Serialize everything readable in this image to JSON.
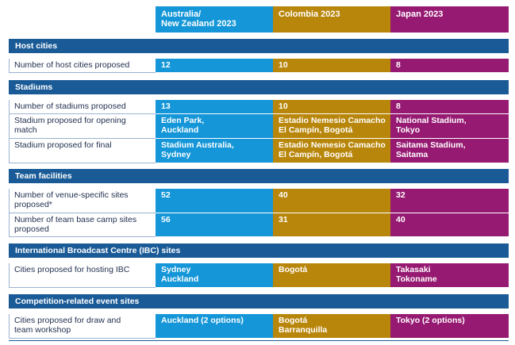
{
  "columns": [
    {
      "lines": [
        "Australia/",
        "New Zealand 2023"
      ],
      "color": "#1496d8"
    },
    {
      "lines": [
        "Colombia 2023"
      ],
      "color": "#b8860b"
    },
    {
      "lines": [
        "Japan 2023"
      ],
      "color": "#961a72"
    }
  ],
  "sections": {
    "host_cities": "Host cities",
    "stadiums": "Stadiums",
    "team_facilities": "Team facilities",
    "ibc": "International Broadcast Centre (IBC) sites",
    "competition": "Competition-related event sites"
  },
  "rows": {
    "host_cities_proposed": {
      "label": [
        "Number of host cities proposed"
      ],
      "values": [
        [
          "12"
        ],
        [
          "10"
        ],
        [
          "8"
        ]
      ]
    },
    "stadiums_proposed": {
      "label": [
        "Number of stadiums proposed"
      ],
      "values": [
        [
          "13"
        ],
        [
          "10"
        ],
        [
          "8"
        ]
      ]
    },
    "opening_match": {
      "label": [
        "Stadium proposed for opening",
        "match"
      ],
      "values": [
        [
          "Eden Park,",
          "Auckland"
        ],
        [
          "Estadio Nemesio Camacho",
          "El Campín, Bogotá"
        ],
        [
          "National Stadium,",
          "Tokyo"
        ]
      ]
    },
    "final": {
      "label": [
        "Stadium proposed for final"
      ],
      "values": [
        [
          "Stadium Australia,",
          "Sydney"
        ],
        [
          "Estadio Nemesio Camacho",
          "El Campín, Bogotá"
        ],
        [
          "Saitama Stadium,",
          "Saitama"
        ]
      ]
    },
    "venue_sites": {
      "label": [
        "Number of venue-specific sites",
        "proposed*"
      ],
      "values": [
        [
          "52"
        ],
        [
          "40"
        ],
        [
          "32"
        ]
      ]
    },
    "base_camps": {
      "label": [
        "Number of team base camp sites",
        "proposed"
      ],
      "values": [
        [
          "56"
        ],
        [
          "31"
        ],
        [
          "40"
        ]
      ]
    },
    "ibc_cities": {
      "label": [
        "Cities proposed for hosting IBC"
      ],
      "values": [
        [
          "Sydney",
          "Auckland"
        ],
        [
          "Bogotá"
        ],
        [
          "Takasaki",
          "Tokoname"
        ]
      ]
    },
    "draw_cities": {
      "label": [
        "Cities proposed for draw and",
        "team workshop"
      ],
      "values": [
        [
          "Auckland (2 options)"
        ],
        [
          "Bogotá",
          "Barranquilla"
        ],
        [
          "Tokyo (2 options)"
        ]
      ]
    }
  }
}
